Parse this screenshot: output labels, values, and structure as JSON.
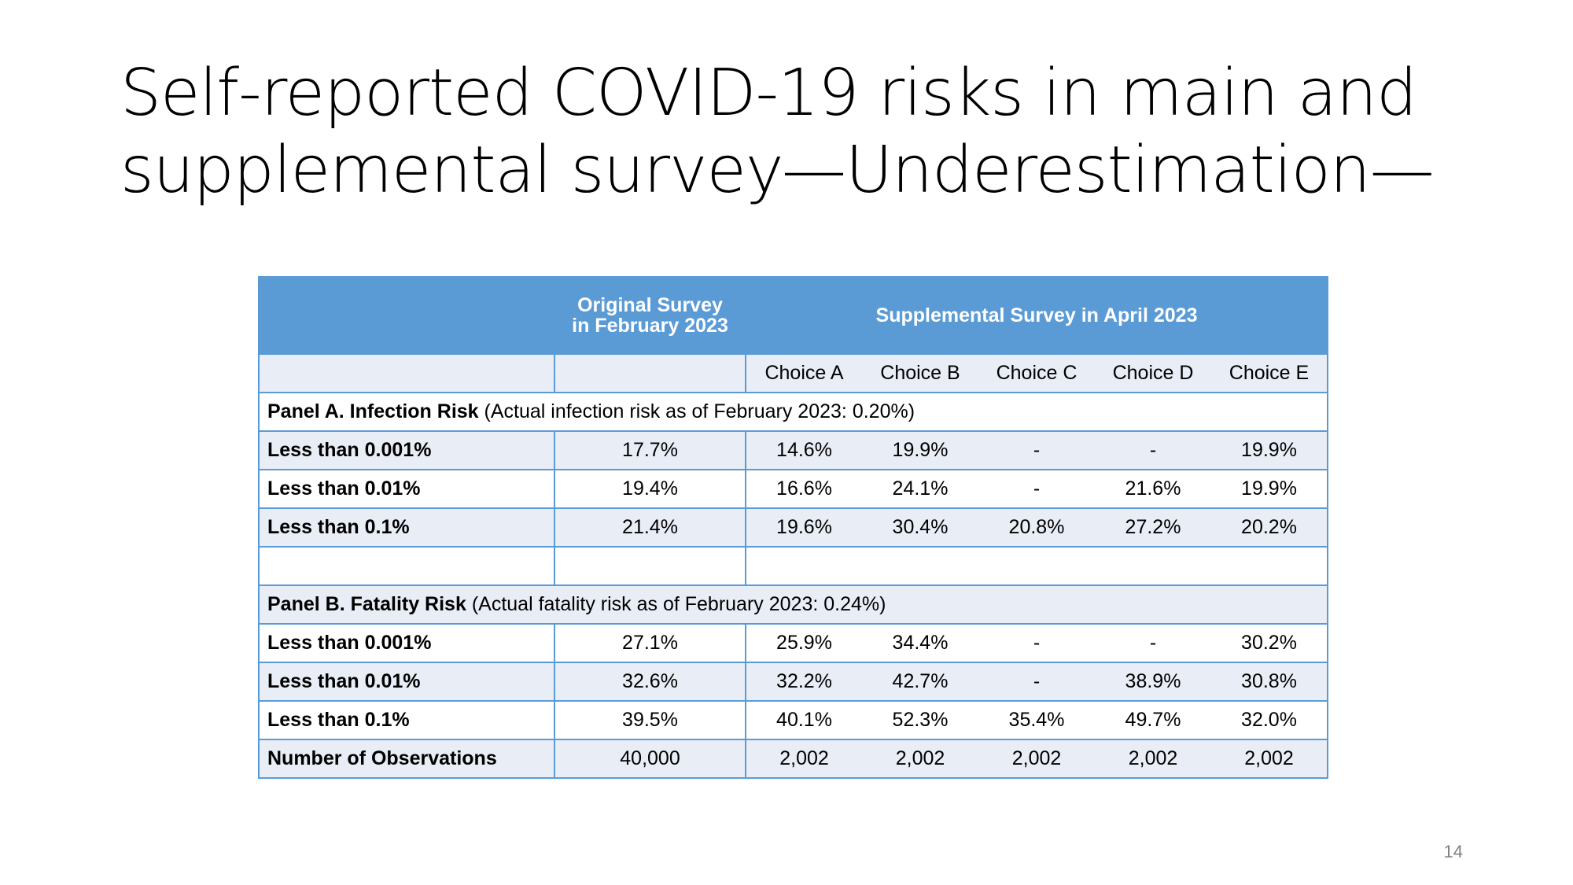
{
  "title": {
    "line1": "Self-reported COVID-19 risks in main and",
    "line2": "supplemental survey—Underestimation—"
  },
  "table": {
    "header": {
      "original_line1": "Original Survey",
      "original_line2": "in February 2023",
      "supplemental": "Supplemental Survey in April 2023"
    },
    "choices": [
      "Choice A",
      "Choice B",
      "Choice C",
      "Choice D",
      "Choice E"
    ],
    "panel_a": {
      "title": "Panel A. Infection Risk",
      "note": " (Actual infection risk as of February 2023: 0.20%)",
      "rows": [
        {
          "label": "Less than 0.001%",
          "original": "17.7%",
          "values": [
            "14.6%",
            "19.9%",
            "-",
            "-",
            "19.9%"
          ]
        },
        {
          "label": "Less than 0.01%",
          "original": "19.4%",
          "values": [
            "16.6%",
            "24.1%",
            "-",
            "21.6%",
            "19.9%"
          ]
        },
        {
          "label": "Less than 0.1%",
          "original": "21.4%",
          "values": [
            "19.6%",
            "30.4%",
            "20.8%",
            "27.2%",
            "20.2%"
          ]
        }
      ]
    },
    "panel_b": {
      "title": "Panel B. Fatality Risk",
      "note": " (Actual fatality risk as of February 2023: 0.24%)",
      "rows": [
        {
          "label": "Less than 0.001%",
          "original": "27.1%",
          "values": [
            "25.9%",
            "34.4%",
            "-",
            "-",
            "30.2%"
          ]
        },
        {
          "label": "Less than 0.01%",
          "original": "32.6%",
          "values": [
            "32.2%",
            "42.7%",
            "-",
            "38.9%",
            "30.8%"
          ]
        },
        {
          "label": "Less than 0.1%",
          "original": "39.5%",
          "values": [
            "40.1%",
            "52.3%",
            "35.4%",
            "49.7%",
            "32.0%"
          ]
        }
      ]
    },
    "observations": {
      "label": "Number of Observations",
      "original": "40,000",
      "values": [
        "2,002",
        "2,002",
        "2,002",
        "2,002",
        "2,002"
      ]
    }
  },
  "page_number": "14",
  "colors": {
    "header_bg": "#5b9bd5",
    "shade_row": "#e9edf6",
    "border": "#5b9bd5"
  }
}
